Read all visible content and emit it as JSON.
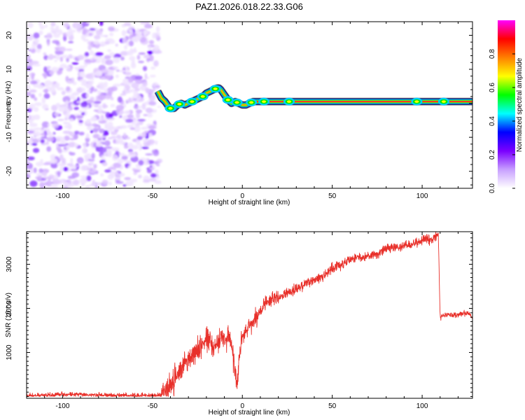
{
  "title": "PAZ1.2026.018.22.33.G06",
  "chart_data": [
    {
      "type": "heatmap",
      "name": "spectrogram",
      "xlabel": "Height of straight line (km)",
      "ylabel": "Frequency (Hz)",
      "xlim": [
        -120,
        128
      ],
      "ylim": [
        -25,
        24
      ],
      "xticks": [
        -100,
        -50,
        0,
        50,
        100
      ],
      "yticks": [
        -20,
        -10,
        0,
        10,
        20
      ],
      "noise_region_x": [
        -120,
        -46
      ],
      "ridge": {
        "x": [
          -47,
          -45,
          -43,
          -41,
          -40,
          -38,
          -36,
          -34,
          -32,
          -30,
          -28,
          -26,
          -24,
          -22,
          -20,
          -18,
          -16,
          -14,
          -13,
          -12,
          -10,
          -8,
          -6,
          -4,
          -2,
          0,
          2,
          4,
          6,
          8,
          10,
          128
        ],
        "y": [
          3.5,
          1.5,
          0.5,
          -1,
          -1.5,
          -1.5,
          -0.5,
          0,
          -0.5,
          0,
          0.5,
          1,
          1.5,
          2,
          3,
          3.5,
          4,
          4.5,
          4.5,
          4,
          2.5,
          1,
          0,
          0.5,
          0,
          -0.5,
          -0.5,
          0,
          0.5,
          0.5,
          0.5,
          0.5
        ]
      },
      "hot_spots_x": [
        -40,
        -35,
        -28,
        -22,
        -15,
        -8,
        -3,
        5,
        12,
        26,
        97,
        112
      ],
      "colorbar": {
        "label": "Normalized spectral amplitude",
        "range": [
          0,
          1
        ],
        "ticks": [
          0.0,
          0.2,
          0.4,
          0.6,
          0.8
        ],
        "colors": [
          "#ffffff",
          "#c8a0ff",
          "#7b00ff",
          "#0000ff",
          "#00ffff",
          "#00ff00",
          "#ffff00",
          "#ff8000",
          "#ff0000",
          "#ff00ff"
        ]
      }
    },
    {
      "type": "line",
      "name": "snr",
      "xlabel": "Height of straight line (km)",
      "ylabel": "SNR (10 * v/v)",
      "xlim": [
        -120,
        128
      ],
      "ylim": [
        -40,
        3740
      ],
      "xticks": [
        -100,
        -50,
        0,
        50,
        100
      ],
      "yticks": [
        1000,
        2000,
        3000
      ],
      "color": "#e8302a",
      "series": [
        {
          "name": "SNR",
          "x": [
            -120,
            -110,
            -100,
            -90,
            -80,
            -70,
            -60,
            -50,
            -46,
            -44,
            -42,
            -40,
            -38,
            -36,
            -34,
            -32,
            -30,
            -28,
            -26,
            -24,
            -22,
            -20,
            -18,
            -16,
            -14,
            -12,
            -10,
            -8,
            -6,
            -5,
            -4,
            -3,
            -2,
            0,
            2,
            4,
            6,
            8,
            10,
            12,
            15,
            20,
            25,
            30,
            35,
            40,
            45,
            50,
            55,
            60,
            65,
            70,
            75,
            80,
            85,
            90,
            95,
            98,
            100,
            103,
            106,
            108,
            109,
            110,
            112,
            115,
            120,
            125,
            128
          ],
          "y": [
            20,
            25,
            50,
            40,
            30,
            25,
            20,
            30,
            30,
            80,
            150,
            240,
            350,
            500,
            650,
            820,
            850,
            880,
            1000,
            1150,
            1200,
            1250,
            1300,
            1100,
            1200,
            1350,
            1250,
            1400,
            1200,
            900,
            500,
            200,
            800,
            1400,
            1500,
            1600,
            1700,
            1800,
            1950,
            2050,
            2150,
            2250,
            2350,
            2450,
            2550,
            2650,
            2720,
            2900,
            3000,
            3100,
            3150,
            3200,
            3250,
            3350,
            3400,
            3400,
            3450,
            3500,
            3550,
            3600,
            3600,
            3650,
            3700,
            1800,
            1850,
            1850,
            1850,
            1900,
            1800
          ]
        }
      ]
    }
  ]
}
